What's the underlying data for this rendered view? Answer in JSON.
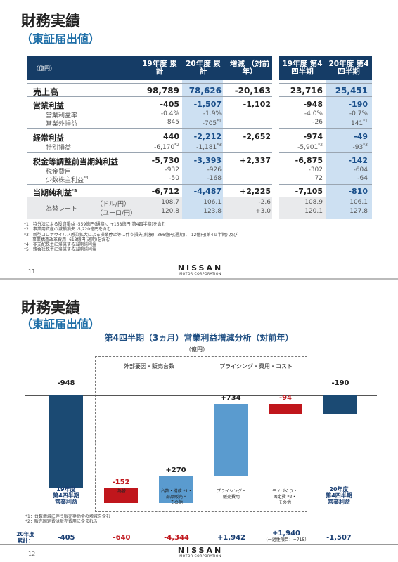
{
  "page1": {
    "title": "財務実績",
    "subtitle": "（東証届出値）",
    "unit_label": "（億円）",
    "headers": [
      "19年度 累計",
      "20年度 累計",
      "増減 （対前年）",
      "19年度 第4四半期",
      "20年度 第4四半期"
    ],
    "rows": [
      {
        "label": "売上高",
        "v": [
          "98,789",
          "78,626",
          "-20,163",
          "23,716",
          "25,451"
        ]
      },
      {
        "label": "営業利益",
        "v": [
          "-405",
          "-1,507",
          "-1,102",
          "-948",
          "-190"
        ]
      },
      {
        "label": "営業利益率",
        "v": [
          "-0.4%",
          "-1.9%",
          "",
          "-4.0%",
          "-0.7%"
        ]
      },
      {
        "label": "営業外損益",
        "v": [
          "845",
          "-705",
          "",
          "-26",
          "141"
        ],
        "sup": [
          "",
          "*1",
          "",
          "",
          "*1"
        ]
      },
      {
        "label": "経常利益",
        "v": [
          "440",
          "-2,212",
          "-2,652",
          "-974",
          "-49"
        ]
      },
      {
        "label": "特別損益",
        "v": [
          "-6,170",
          "-1,181",
          "",
          "-5,901",
          "-93"
        ],
        "sup": [
          "*2",
          "*3",
          "",
          "*2",
          "*3"
        ]
      },
      {
        "label": "税金等調整前当期純利益",
        "v": [
          "-5,730",
          "-3,393",
          "+2,337",
          "-6,875",
          "-142"
        ]
      },
      {
        "label": "税金費用",
        "v": [
          "-932",
          "-926",
          "",
          "-302",
          "-604"
        ]
      },
      {
        "label": "少数株主利益",
        "sup_label": "*4",
        "v": [
          "-50",
          "-168",
          "",
          "72",
          "-64"
        ]
      },
      {
        "label": "当期純利益",
        "sup_label": "*5",
        "v": [
          "-6,712",
          "-4,487",
          "+2,225",
          "-7,105",
          "-810"
        ]
      }
    ],
    "fx": {
      "label": "為替レート",
      "units": [
        "（ドル/円）",
        "（ユーロ/円）"
      ],
      "usd": [
        "108.7",
        "106.1",
        "-2.6",
        "108.9",
        "106.1"
      ],
      "eur": [
        "120.8",
        "123.8",
        "+3.0",
        "120.1",
        "127.8"
      ]
    },
    "notes": [
      "*1：持分法による投資損益 -559億円(通期)、+158億円(第4四半期)を含む",
      "*2：事業用資産の減損損失 -5,220億円を含む",
      "*3：新型コロナウイルス感染拡大による操業停止等に伴う損失(純額) -366億円(通期)、-12億円(第4四半期) 及び",
      "　　事業構造改革費用 -613億円(通期)を含む",
      "*4：非支配株主に帰属する当期純利益",
      "*5：親会社株主に帰属する当期純利益"
    ],
    "page_number": "11"
  },
  "logo": {
    "word": "NISSAN",
    "corp": "MOTOR CORPORATION"
  },
  "page2": {
    "title": "財務実績",
    "subtitle": "（東証届出値）",
    "chart_title": "第4四半期（3ヵ月）営業利益増減分析（対前年）",
    "unit": "（億円）",
    "group1": "外部要因・販売台数",
    "group2": "プライシング・費用・コスト",
    "start_label": [
      "19年度",
      "第4四半期",
      "営業利益"
    ],
    "end_label": [
      "20年度",
      "第4四半期",
      "営業利益"
    ],
    "cat_labels": [
      [
        "為替"
      ],
      [
        "台数・構成 *1・",
        "部品販売・",
        "その他"
      ],
      [
        "プライシング・",
        "販売費用"
      ],
      [
        "モノづくり・",
        "固定費 *2・",
        "その他"
      ]
    ],
    "notes": [
      "*1：台数増減に伴う販売奨励金の増減を含む",
      "*2：販売固定費は販売費用に含まれる"
    ],
    "bottom_label": [
      "20年度",
      "累計："
    ],
    "bottom_values": [
      "-405",
      "-640",
      "-4,344",
      "+1,942",
      "+1,940",
      "-1,507"
    ],
    "bottom_sub": "（一過性項目：+715）",
    "page_number": "12"
  },
  "chart_data": {
    "type": "bar",
    "title": "第4四半期（3ヵ月）営業利益増減分析（対前年）",
    "ylabel": "（億円）",
    "categories": [
      "19年度 第4四半期 営業利益",
      "為替",
      "台数・構成・部品販売・その他",
      "プライシング・販売費用",
      "モノづくり・固定費・その他",
      "20年度 第4四半期 営業利益"
    ],
    "values": [
      -948,
      -152,
      270,
      734,
      -94,
      -190
    ],
    "value_labels": [
      "-948",
      "-152",
      "+270",
      "+734",
      "-94",
      "-190"
    ],
    "colors": {
      "total": "#1b4a73",
      "positive": "#5a9bcf",
      "negative": "#c0161c"
    }
  }
}
